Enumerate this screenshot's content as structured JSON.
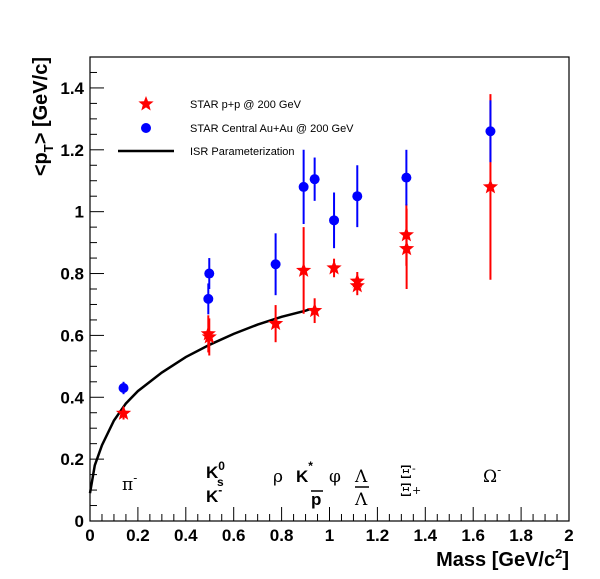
{
  "chart_data": {
    "type": "scatter",
    "xlabel": "Mass [GeV/c²]",
    "ylabel": "<p_T> [GeV/c]",
    "xlim": [
      0,
      2
    ],
    "ylim": [
      0,
      1.5
    ],
    "x_ticks": [
      "0",
      "0.2",
      "0.4",
      "0.6",
      "0.8",
      "1",
      "1.2",
      "1.4",
      "1.6",
      "1.8",
      "2"
    ],
    "y_ticks": [
      "0",
      "0.2",
      "0.4",
      "0.6",
      "0.8",
      "1",
      "1.2",
      "1.4"
    ],
    "legend_position": "top-left",
    "series": [
      {
        "name": "STAR p+p @ 200 GeV",
        "marker": "star",
        "color": "#ff0000",
        "points": [
          {
            "x": 0.14,
            "y": 0.348,
            "err": 0.02
          },
          {
            "x": 0.494,
            "y": 0.605,
            "err": 0.06
          },
          {
            "x": 0.498,
            "y": 0.595,
            "err": 0.06
          },
          {
            "x": 0.775,
            "y": 0.638,
            "err": 0.06
          },
          {
            "x": 0.892,
            "y": 0.81,
            "err": 0.14
          },
          {
            "x": 0.938,
            "y": 0.68,
            "err": 0.04
          },
          {
            "x": 1.019,
            "y": 0.818,
            "err": 0.03
          },
          {
            "x": 1.116,
            "y": 0.775,
            "err": 0.03
          },
          {
            "x": 1.116,
            "y": 0.76,
            "err": 0.03
          },
          {
            "x": 1.321,
            "y": 0.925,
            "err": 0.1
          },
          {
            "x": 1.322,
            "y": 0.88,
            "err": 0.13
          },
          {
            "x": 1.672,
            "y": 1.08,
            "err": 0.3
          }
        ]
      },
      {
        "name": "STAR Central Au+Au @ 200 GeV",
        "marker": "circle",
        "color": "#0000ff",
        "points": [
          {
            "x": 0.14,
            "y": 0.43,
            "err": 0.02
          },
          {
            "x": 0.494,
            "y": 0.718,
            "err": 0.05
          },
          {
            "x": 0.498,
            "y": 0.8,
            "err": 0.05
          },
          {
            "x": 0.775,
            "y": 0.83,
            "err": 0.1
          },
          {
            "x": 0.892,
            "y": 1.08,
            "err": 0.12
          },
          {
            "x": 0.938,
            "y": 1.105,
            "err": 0.07
          },
          {
            "x": 1.019,
            "y": 0.972,
            "err": 0.09
          },
          {
            "x": 1.116,
            "y": 1.05,
            "err": 0.1
          },
          {
            "x": 1.321,
            "y": 1.11,
            "err": 0.09
          },
          {
            "x": 1.672,
            "y": 1.26,
            "err": 0.1
          }
        ]
      },
      {
        "name": "ISR Parameterization",
        "marker": "line",
        "color": "#000000",
        "x_range": [
          0,
          0.92
        ],
        "x": [
          0.0,
          0.02,
          0.05,
          0.1,
          0.15,
          0.2,
          0.3,
          0.4,
          0.5,
          0.6,
          0.7,
          0.8,
          0.9,
          0.92
        ],
        "y": [
          0.09,
          0.18,
          0.245,
          0.325,
          0.38,
          0.42,
          0.48,
          0.53,
          0.57,
          0.605,
          0.635,
          0.66,
          0.68,
          0.685
        ]
      }
    ],
    "annotations": {
      "pi": {
        "base": "π",
        "sup": "-"
      },
      "k0": {
        "base": "K",
        "sup": "0",
        "sub": "s"
      },
      "kminus": {
        "base": "K",
        "sup": "-"
      },
      "rho": "ρ",
      "kstar": {
        "base": "K",
        "sup": "*"
      },
      "pbar": "p",
      "phi": "φ",
      "lambda": "Λ",
      "lambdabar": "Λ",
      "xi": {
        "base": "Ξ",
        "sup": "-"
      },
      "xibar": {
        "base": "Ξ",
        "sup": "+"
      },
      "omega": {
        "base": "Ω",
        "sup": "-"
      }
    }
  }
}
